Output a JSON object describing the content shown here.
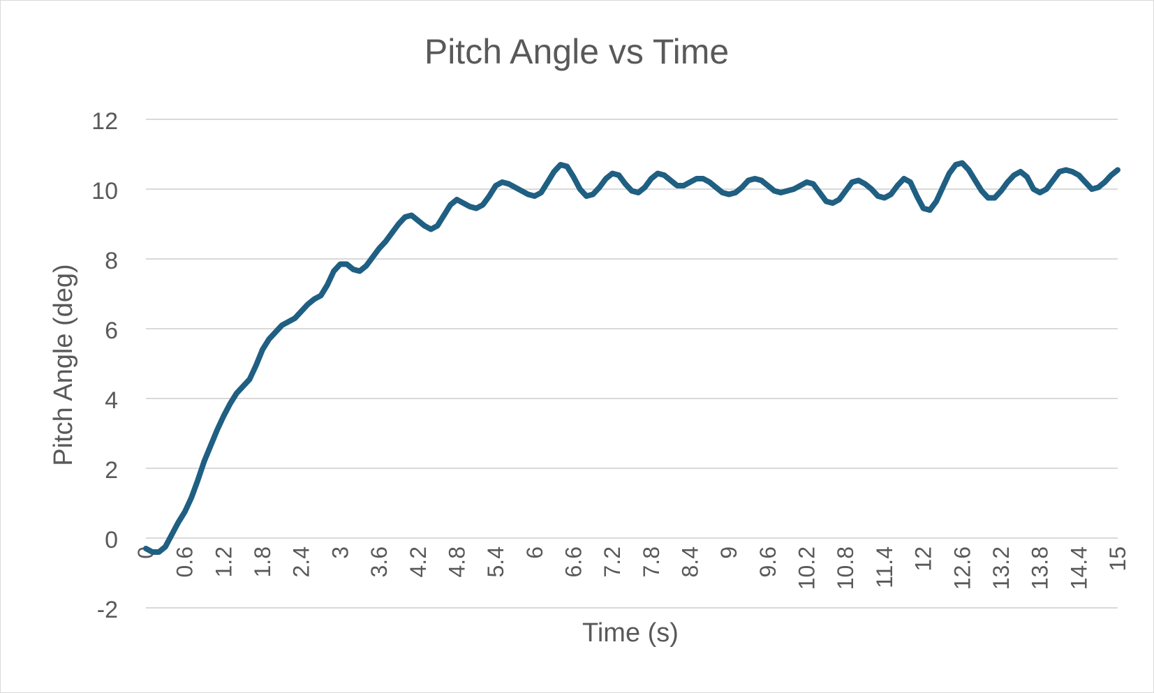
{
  "chart_data": {
    "type": "line",
    "title": "Pitch Angle vs Time",
    "xlabel": "Time (s)",
    "ylabel": "Pitch Angle (deg)",
    "xlim": [
      0,
      15
    ],
    "ylim": [
      -2,
      12
    ],
    "y_ticks": [
      -2,
      0,
      2,
      4,
      6,
      8,
      10,
      12
    ],
    "x_tick_labels": [
      {
        "x": 0,
        "label": "0"
      },
      {
        "x": 0.6,
        "label": "0.6"
      },
      {
        "x": 1.2,
        "label": "1.2"
      },
      {
        "x": 1.8,
        "label": "1.8"
      },
      {
        "x": 2.4,
        "label": "2.4"
      },
      {
        "x": 3,
        "label": "3"
      },
      {
        "x": 3.6,
        "label": "3.6"
      },
      {
        "x": 4.2,
        "label": "4.2"
      },
      {
        "x": 4.8,
        "label": "4.8"
      },
      {
        "x": 5.4,
        "label": "5.4"
      },
      {
        "x": 6,
        "label": "6"
      },
      {
        "x": 6.6,
        "label": "6.6"
      },
      {
        "x": 7.2,
        "label": "7.2"
      },
      {
        "x": 7.8,
        "label": "7.8"
      },
      {
        "x": 8.4,
        "label": "8.4"
      },
      {
        "x": 9,
        "label": "9"
      },
      {
        "x": 9.6,
        "label": "9.6"
      },
      {
        "x": 10.2,
        "label": "10.2"
      },
      {
        "x": 10.8,
        "label": "10.8"
      },
      {
        "x": 11.4,
        "label": "11.4"
      },
      {
        "x": 12,
        "label": "12"
      },
      {
        "x": 12.6,
        "label": "12.6"
      },
      {
        "x": 13.2,
        "label": "13.2"
      },
      {
        "x": 13.8,
        "label": "13.8"
      },
      {
        "x": 14.4,
        "label": "14.4"
      },
      {
        "x": 15,
        "label": "15"
      }
    ],
    "grid": true,
    "legend": "none",
    "series": [
      {
        "color": "#1f5f82",
        "x": [
          0,
          0.1,
          0.2,
          0.3,
          0.4,
          0.5,
          0.6,
          0.7,
          0.8,
          0.9,
          1.0,
          1.1,
          1.2,
          1.3,
          1.4,
          1.5,
          1.6,
          1.7,
          1.8,
          1.9,
          2.0,
          2.1,
          2.2,
          2.3,
          2.4,
          2.5,
          2.6,
          2.7,
          2.8,
          2.9,
          3.0,
          3.1,
          3.2,
          3.3,
          3.4,
          3.5,
          3.6,
          3.7,
          3.8,
          3.9,
          4.0,
          4.1,
          4.2,
          4.3,
          4.4,
          4.5,
          4.6,
          4.7,
          4.8,
          4.9,
          5.0,
          5.1,
          5.2,
          5.3,
          5.4,
          5.5,
          5.6,
          5.7,
          5.8,
          5.9,
          6.0,
          6.1,
          6.2,
          6.3,
          6.4,
          6.5,
          6.6,
          6.7,
          6.8,
          6.9,
          7.0,
          7.1,
          7.2,
          7.3,
          7.4,
          7.5,
          7.6,
          7.7,
          7.8,
          7.9,
          8.0,
          8.1,
          8.2,
          8.3,
          8.4,
          8.5,
          8.6,
          8.7,
          8.8,
          8.9,
          9.0,
          9.1,
          9.2,
          9.3,
          9.4,
          9.5,
          9.6,
          9.7,
          9.8,
          9.9,
          10.0,
          10.1,
          10.2,
          10.3,
          10.4,
          10.5,
          10.6,
          10.7,
          10.8,
          10.9,
          11.0,
          11.1,
          11.2,
          11.3,
          11.4,
          11.5,
          11.6,
          11.7,
          11.8,
          11.9,
          12.0,
          12.1,
          12.2,
          12.3,
          12.4,
          12.5,
          12.6,
          12.7,
          12.8,
          12.9,
          13.0,
          13.1,
          13.2,
          13.3,
          13.4,
          13.5,
          13.6,
          13.7,
          13.8,
          13.9,
          14.0,
          14.1,
          14.2,
          14.3,
          14.4,
          14.5,
          14.6,
          14.7,
          14.8,
          14.9,
          15.0
        ],
        "y": [
          -0.3,
          -0.4,
          -0.4,
          -0.25,
          0.1,
          0.45,
          0.75,
          1.15,
          1.65,
          2.2,
          2.65,
          3.1,
          3.5,
          3.85,
          4.15,
          4.35,
          4.55,
          4.95,
          5.4,
          5.7,
          5.9,
          6.1,
          6.2,
          6.3,
          6.5,
          6.7,
          6.85,
          6.95,
          7.25,
          7.65,
          7.85,
          7.85,
          7.7,
          7.65,
          7.8,
          8.05,
          8.3,
          8.5,
          8.75,
          9.0,
          9.2,
          9.25,
          9.1,
          8.95,
          8.85,
          8.95,
          9.25,
          9.55,
          9.7,
          9.6,
          9.5,
          9.45,
          9.55,
          9.8,
          10.1,
          10.2,
          10.15,
          10.05,
          9.95,
          9.85,
          9.8,
          9.9,
          10.2,
          10.5,
          10.7,
          10.65,
          10.35,
          10.0,
          9.8,
          9.85,
          10.05,
          10.3,
          10.45,
          10.4,
          10.15,
          9.95,
          9.9,
          10.05,
          10.3,
          10.45,
          10.4,
          10.25,
          10.1,
          10.1,
          10.2,
          10.3,
          10.3,
          10.2,
          10.05,
          9.9,
          9.85,
          9.9,
          10.05,
          10.25,
          10.3,
          10.25,
          10.1,
          9.95,
          9.9,
          9.95,
          10.0,
          10.1,
          10.2,
          10.15,
          9.9,
          9.65,
          9.6,
          9.7,
          9.95,
          10.2,
          10.25,
          10.15,
          10.0,
          9.8,
          9.75,
          9.85,
          10.1,
          10.3,
          10.2,
          9.8,
          9.45,
          9.4,
          9.65,
          10.05,
          10.45,
          10.7,
          10.75,
          10.55,
          10.25,
          9.95,
          9.75,
          9.75,
          9.95,
          10.2,
          10.4,
          10.5,
          10.35,
          10.0,
          9.9,
          10.0,
          10.25,
          10.5,
          10.55,
          10.5,
          10.4,
          10.2,
          10.0,
          10.05,
          10.2,
          10.4,
          10.55
        ]
      }
    ]
  }
}
